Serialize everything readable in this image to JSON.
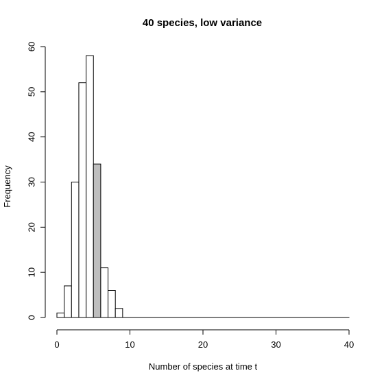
{
  "chart_data": {
    "type": "bar",
    "title": "40 species, low variance",
    "xlabel": "Number of species at time t",
    "ylabel": "Frequency",
    "xlim": [
      0,
      40
    ],
    "ylim": [
      0,
      60
    ],
    "xticks": [
      "0",
      "10",
      "20",
      "30",
      "40"
    ],
    "yticks": [
      "0",
      "10",
      "20",
      "30",
      "40",
      "50",
      "60"
    ],
    "bin_width": 1,
    "bins": [
      {
        "start": 0,
        "end": 1,
        "value": 1
      },
      {
        "start": 1,
        "end": 2,
        "value": 7
      },
      {
        "start": 2,
        "end": 3,
        "value": 30
      },
      {
        "start": 3,
        "end": 4,
        "value": 52
      },
      {
        "start": 4,
        "end": 5,
        "value": 58
      },
      {
        "start": 5,
        "end": 6,
        "value": 34,
        "highlighted": true
      },
      {
        "start": 6,
        "end": 7,
        "value": 11
      },
      {
        "start": 7,
        "end": 8,
        "value": 6
      },
      {
        "start": 8,
        "end": 9,
        "value": 2
      },
      {
        "start": 9,
        "end": 40,
        "value": 0
      }
    ],
    "bar_fill": "#ffffff",
    "highlight_fill": "#bebebe",
    "stroke": "#000000",
    "grid": false,
    "legend": "none"
  }
}
